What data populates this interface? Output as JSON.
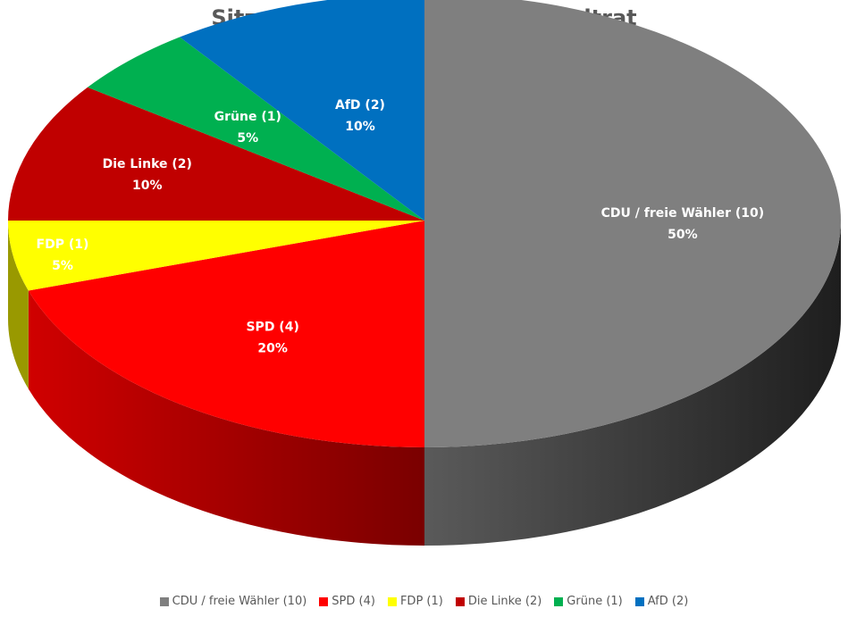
{
  "chart_data": {
    "type": "pie",
    "title": "Sitzverteilung Ilsenburger Stadtrat",
    "slices": [
      {
        "label": "CDU / freie Wähler (10)",
        "value": 10,
        "percent_label": "50%",
        "color": "#7f7f7f",
        "side_color": "#404040"
      },
      {
        "label": "SPD (4)",
        "value": 4,
        "percent_label": "20%",
        "color": "#ff0000",
        "side_color": "#8b0000"
      },
      {
        "label": "FDP (1)",
        "value": 1,
        "percent_label": "5%",
        "color": "#ffff00",
        "side_color": "#999900"
      },
      {
        "label": "Die Linke (2)",
        "value": 2,
        "percent_label": "10%",
        "color": "#c00000",
        "side_color": "#600000"
      },
      {
        "label": "Grüne (1)",
        "value": 1,
        "percent_label": "5%",
        "color": "#00b050",
        "side_color": "#006030"
      },
      {
        "label": "AfD (2)",
        "value": 2,
        "percent_label": "10%",
        "color": "#0070c0",
        "side_color": "#003a66"
      }
    ],
    "legend_position": "bottom"
  }
}
